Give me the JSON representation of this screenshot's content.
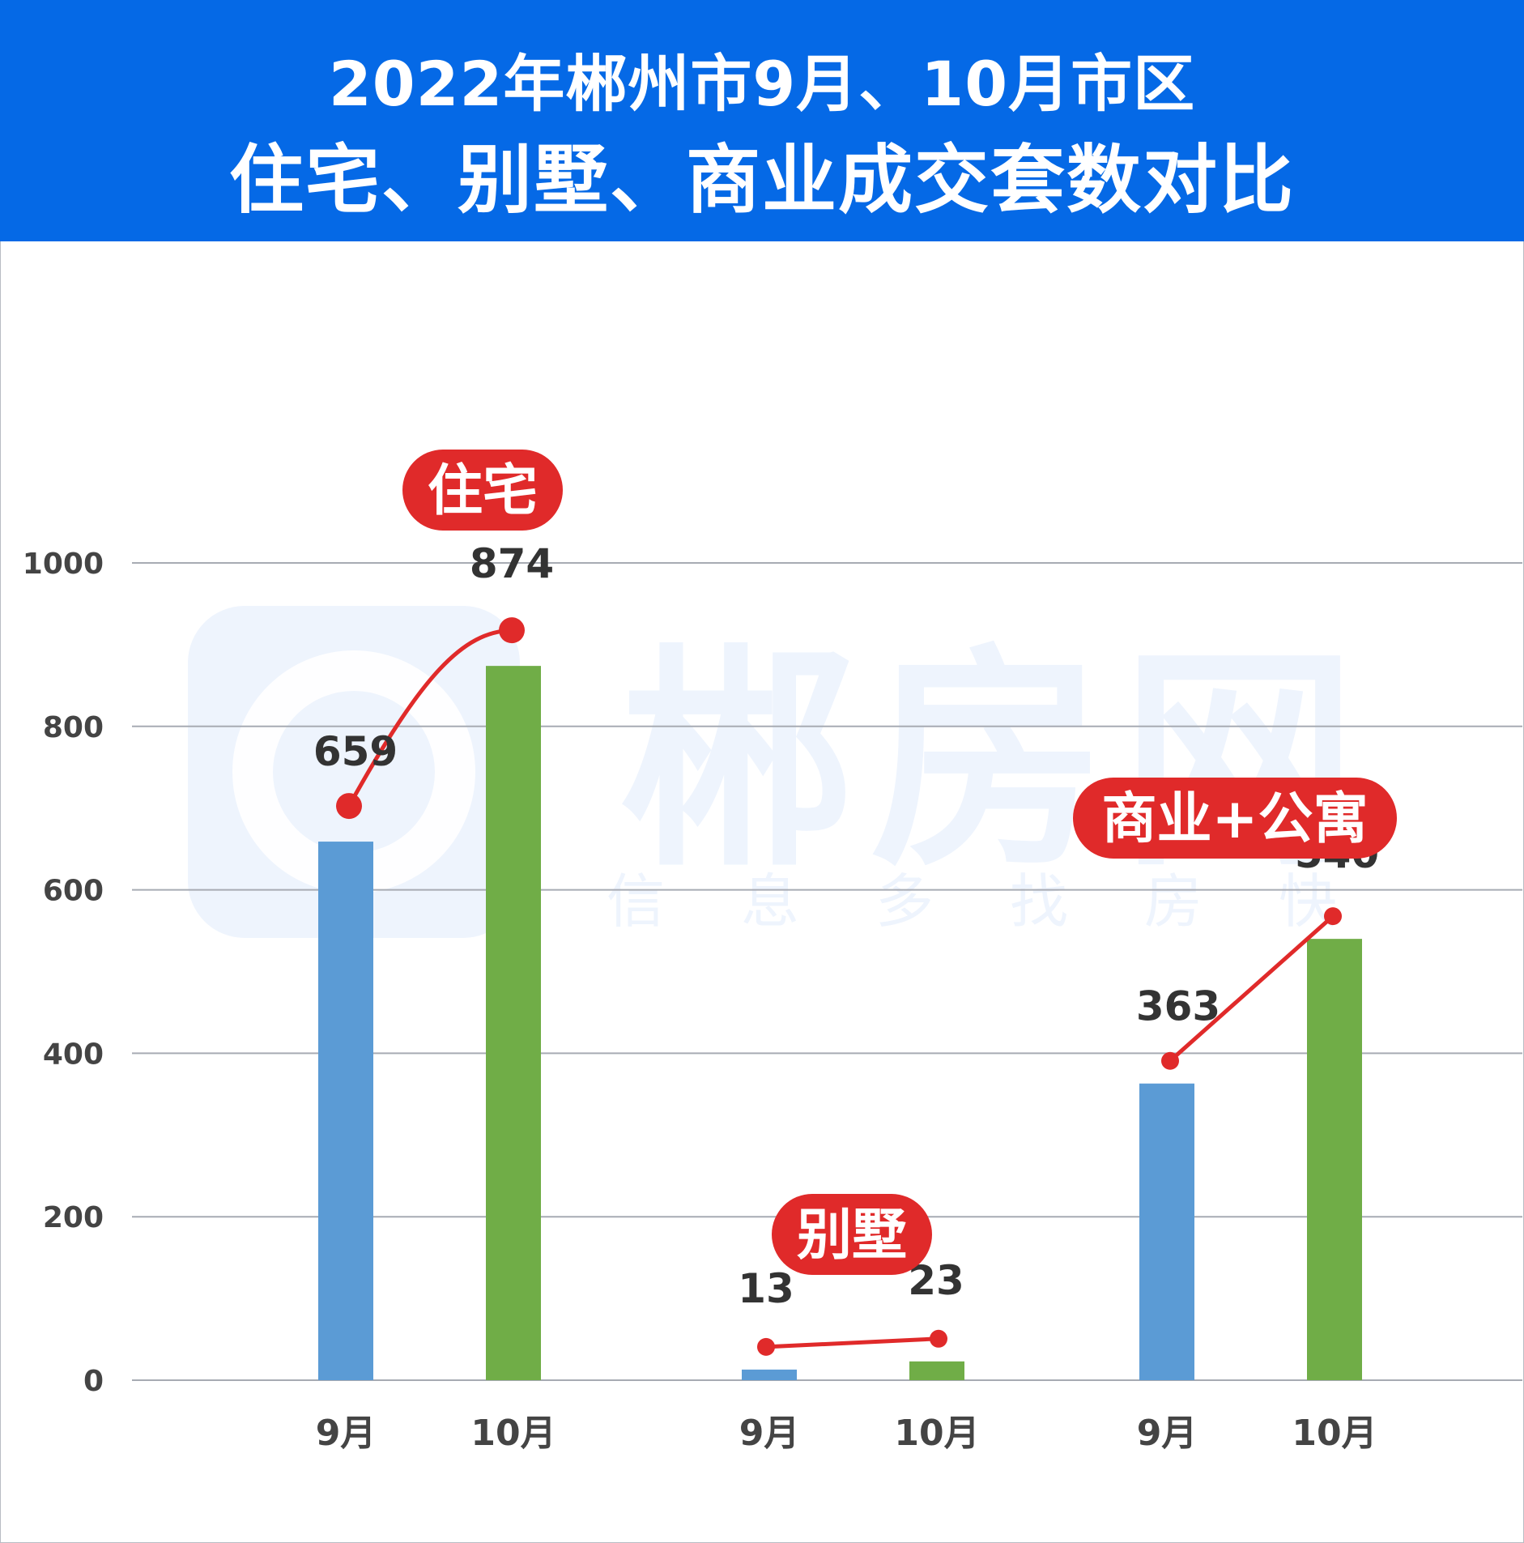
{
  "header": {
    "title_line1": "2022年郴州市9月、10月市区",
    "title_line2": "住宅、别墅、商业成交套数对比"
  },
  "watermark": {
    "brand": "郴房网",
    "slogan": [
      "信",
      "息",
      "多",
      "找",
      "房",
      "快"
    ]
  },
  "colors": {
    "header_bg": "#0569e6",
    "sep_bar": "#5b9bd5",
    "oct_bar": "#70ad47",
    "trend_line": "#e02a2a",
    "category_tag": "#e02a2a"
  },
  "chart_data": {
    "type": "bar",
    "title": "2022年郴州市9月、10月市区 住宅、别墅、商业成交套数对比",
    "ylim": [
      0,
      1000
    ],
    "yticks": [
      0,
      200,
      400,
      600,
      800,
      1000
    ],
    "grid": true,
    "groups": [
      {
        "name": "住宅",
        "categories": [
          "9月",
          "10月"
        ],
        "values": [
          659,
          874
        ]
      },
      {
        "name": "别墅",
        "categories": [
          "9月",
          "10月"
        ],
        "values": [
          13,
          23
        ]
      },
      {
        "name": "商业+公寓",
        "categories": [
          "9月",
          "10月"
        ],
        "values": [
          363,
          540
        ]
      }
    ]
  }
}
